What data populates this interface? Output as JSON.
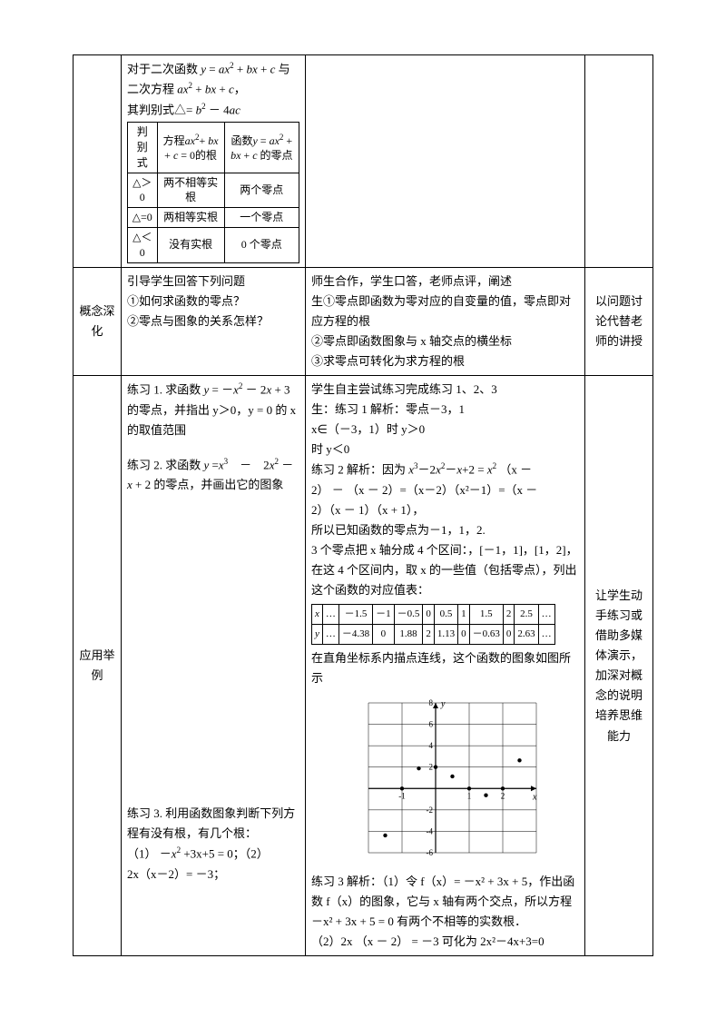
{
  "row1": {
    "intro1": "对于二次函数",
    "intro2": "与二次方程",
    "intro3": "其判别式△=",
    "innerTable": {
      "h1": "判别式",
      "h2": "方程",
      "h2b": "= 0的根",
      "h3": "函数",
      "h3b": "的零点",
      "r1c1": "△＞0",
      "r1c2": "两不相等实根",
      "r1c3": "两个零点",
      "r2c1": "△=0",
      "r2c2": "两相等实根",
      "r2c3": "一个零点",
      "r3c1": "△＜0",
      "r3c2": "没有实根",
      "r3c3": "0 个零点"
    }
  },
  "row2": {
    "label": "概念深化",
    "left1": "引导学生回答下列问题",
    "left2": "①如何求函数的零点？",
    "left3": "②零点与图象的关系怎样？",
    "mid1": "师生合作，学生口答，老师点评，阐述",
    "mid2": "生①零点即函数为零对应的自变量的值，零点即对应方程的根",
    "mid3": "②零点即函数图象与 x 轴交点的横坐标",
    "mid4": "③求零点可转化为求方程的根",
    "right": "以问题讨论代替老师的讲授"
  },
  "row3": {
    "label": "应用举例",
    "left_p1a": "练习 1. 求函数",
    "left_p1b": "+ 3 的零点，并指出 y＞0，y = 0 的 x 的取值范围",
    "left_p2a": "练习 2. 求函数",
    "left_p2b": "+ 2 的零点，并画出它的图象",
    "left_p3": "练习 3. 利用函数图象判断下列方程有没有根，有几个根：",
    "left_p3a": "（1）",
    "left_p3a2": "+3x+5 = 0；（2）",
    "left_p3b": "2x（x－2）= －3；",
    "mid_l1": "学生自主尝试练习完成练习 1、2、3",
    "mid_l2": "生：练习 1 解析：零点－3，1",
    "mid_l3a": "x∈（－3，1）时 y＞0",
    "mid_l3b": "时 y＜0",
    "mid_l4a": "练习 2 解析：因为",
    "mid_l4b": "（x －",
    "mid_l5": "2） － （x － 2）=（x－2）（x²－1）=（x －",
    "mid_l6": "2）（x － 1）（x + 1），",
    "mid_l7": "所以已知函数的零点为－1，1，2.",
    "mid_l8": "3 个零点把 x 轴分成 4 个区间：，[－1，1]，[1，2]，",
    "mid_l9": "在这 4 个区间内，取 x 的一些值（包括零点），列出这个函数的对应值表：",
    "valTable": {
      "rx": [
        "x",
        "…",
        "－1.5",
        "－1",
        "－0.5",
        "0",
        "0.5",
        "1",
        "1.5",
        "2",
        "2.5",
        "…"
      ],
      "ry": [
        "y",
        "…",
        "－4.38",
        "0",
        "1.88",
        "2",
        "1.13",
        "0",
        "－0.63",
        "0",
        "2.63",
        "…"
      ]
    },
    "mid_l10": "在直角坐标系内描点连线，这个函数的图象如图所示",
    "mid_l11a": "练习 3 解析：（1）令 f（x）= －x² + 3x + 5，作出函数 f（x）的图象，它与 x 轴有两个交点，所以方程－x² + 3x + 5 = 0 有两个不相等的实数根．",
    "mid_l12": "（2）2x （x － 2） = －3 可化为 2x²－4x+3=0",
    "right": "让学生动手练习或借助多媒体演示，加深对概念的说明培养思维能力",
    "chart": {
      "background": "#ffffff",
      "grid_color": "#000000",
      "axis_color": "#000000",
      "curve_color": "#000000",
      "x_range": [
        -2,
        3
      ],
      "y_range": [
        -6,
        8
      ],
      "x_ticks": [
        -1,
        1,
        2
      ],
      "y_ticks": [
        -6,
        -4,
        -2,
        2,
        4,
        6,
        8
      ],
      "points_x": [
        -1.5,
        -1,
        -0.5,
        0,
        0.5,
        1,
        1.5,
        2,
        2.5
      ],
      "points_y": [
        -4.38,
        0,
        1.88,
        2,
        1.13,
        0,
        -0.63,
        0,
        2.63
      ]
    }
  }
}
